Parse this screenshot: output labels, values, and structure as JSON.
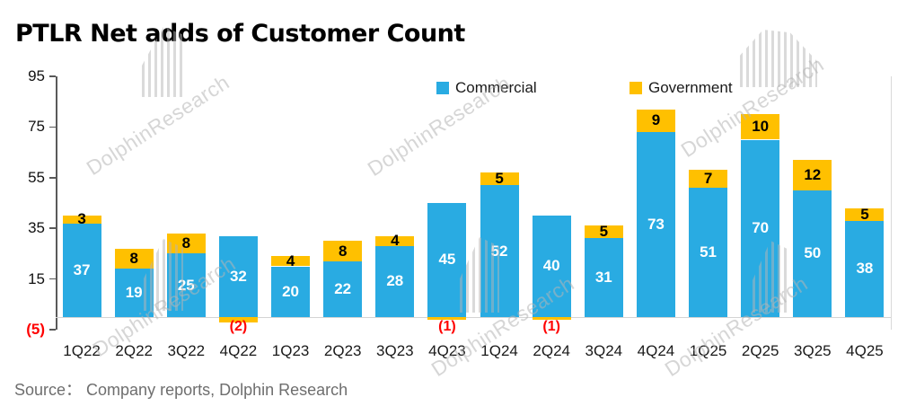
{
  "title": "PTLR Net adds of Customer Count",
  "source_note": "Source： Company reports, Dolphin Research",
  "watermark": {
    "text": "DolphinResearch"
  },
  "legend": {
    "items": [
      {
        "label": "Commercial",
        "color": "#29ABE2"
      },
      {
        "label": "Government",
        "color": "#FFC000"
      }
    ]
  },
  "chart_data": {
    "type": "bar",
    "stacked": true,
    "title": "PTLR Net adds of Customer Count",
    "xlabel": "",
    "ylabel": "",
    "ylim": [
      -5,
      95
    ],
    "y_ticks": [
      95,
      75,
      55,
      35,
      15,
      -5
    ],
    "grid": false,
    "legend_position": "top",
    "categories": [
      "1Q22",
      "2Q22",
      "3Q22",
      "4Q22",
      "1Q23",
      "2Q23",
      "3Q23",
      "4Q23",
      "1Q24",
      "2Q24",
      "3Q24",
      "4Q24",
      "1Q25",
      "2Q25",
      "3Q25",
      "4Q25"
    ],
    "series": [
      {
        "name": "Commercial",
        "color": "#29ABE2",
        "label_color": "#FFFFFF",
        "values": [
          37,
          19,
          25,
          32,
          20,
          22,
          28,
          45,
          52,
          40,
          31,
          73,
          51,
          70,
          50,
          38
        ]
      },
      {
        "name": "Government",
        "color": "#FFC000",
        "label_color": "#000000",
        "values": [
          3,
          8,
          8,
          -2,
          4,
          8,
          4,
          -1,
          5,
          -1,
          5,
          9,
          7,
          10,
          12,
          5
        ]
      }
    ],
    "negative_label_style": "parentheses",
    "negative_label_color": "#FF0000"
  }
}
